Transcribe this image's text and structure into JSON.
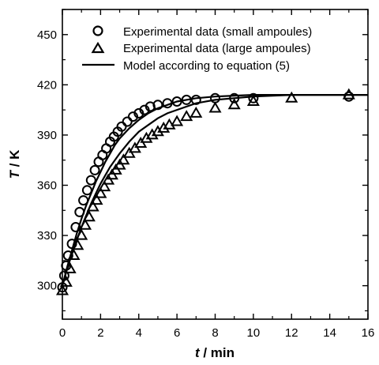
{
  "chart_data": {
    "type": "scatter",
    "xlabel": {
      "symbol": "t",
      "unit": " / min"
    },
    "ylabel": {
      "symbol": "T",
      "unit": " / K"
    },
    "xlim": [
      0,
      16
    ],
    "ylim": [
      280,
      465
    ],
    "x_ticks": [
      "0",
      "2",
      "4",
      "6",
      "8",
      "10",
      "12",
      "14",
      "16"
    ],
    "y_ticks": [
      "300",
      "330",
      "360",
      "390",
      "420",
      "450"
    ],
    "legend_position": "top-right",
    "series": [
      {
        "name": "Experimental data (small ampoules)",
        "marker": "circle",
        "x": [
          0,
          0.1,
          0.2,
          0.3,
          0.5,
          0.7,
          0.9,
          1.1,
          1.3,
          1.5,
          1.7,
          1.9,
          2.1,
          2.3,
          2.5,
          2.7,
          2.9,
          3.1,
          3.4,
          3.7,
          4.0,
          4.3,
          4.6,
          5.0,
          5.5,
          6.0,
          6.5,
          7.0,
          8.0,
          9.0,
          10.0,
          15.0
        ],
        "y": [
          299,
          306,
          312,
          318,
          325,
          335,
          344,
          351,
          357,
          363,
          369,
          374,
          378,
          382,
          386,
          389,
          392,
          395,
          398,
          401,
          403,
          405,
          407,
          408,
          409,
          410,
          411,
          411,
          412,
          412,
          412,
          413
        ]
      },
      {
        "name": "Experimental data (large ampoules)",
        "marker": "triangle",
        "x": [
          0.0,
          0.2,
          0.4,
          0.6,
          0.8,
          1.0,
          1.2,
          1.4,
          1.6,
          1.8,
          2.0,
          2.2,
          2.4,
          2.6,
          2.8,
          3.0,
          3.2,
          3.5,
          3.8,
          4.1,
          4.4,
          4.7,
          5.0,
          5.3,
          5.6,
          6.0,
          6.5,
          7.0,
          8.0,
          9.0,
          10.0,
          12.0,
          15.0
        ],
        "y": [
          297,
          302,
          310,
          318,
          324,
          330,
          336,
          341,
          347,
          351,
          355,
          359,
          363,
          366,
          369,
          372,
          375,
          379,
          382,
          385,
          388,
          390,
          392,
          394,
          396,
          398,
          401,
          403,
          406,
          408,
          410,
          412,
          414
        ]
      },
      {
        "name": "Model according to equation (5)",
        "marker": "line",
        "x": [
          0,
          0.25,
          0.5,
          0.75,
          1,
          1.25,
          1.5,
          1.75,
          2,
          2.25,
          2.5,
          2.75,
          3,
          3.5,
          4,
          4.5,
          5,
          5.5,
          6,
          7,
          8,
          9,
          10,
          11,
          12,
          13,
          14,
          15,
          16
        ],
        "y": [
          300,
          310,
          319,
          327,
          335,
          342,
          349,
          355,
          361,
          366,
          371,
          375,
          379,
          386,
          392,
          396,
          400,
          403,
          405,
          409,
          411,
          412,
          413,
          413.5,
          414,
          414,
          414,
          414,
          414
        ]
      },
      {
        "name": "",
        "marker": "line",
        "x": [
          0,
          0.25,
          0.5,
          0.75,
          1,
          1.25,
          1.5,
          1.75,
          2,
          2.25,
          2.5,
          2.75,
          3,
          3.5,
          4,
          4.5,
          5,
          5.5,
          6,
          7,
          8,
          9,
          10,
          11,
          12,
          13,
          14,
          15,
          16
        ],
        "y": [
          300,
          311,
          321,
          331,
          340,
          348,
          355,
          362,
          368,
          374,
          379,
          384,
          388,
          394,
          399,
          403,
          406,
          408,
          410,
          412,
          413,
          413.5,
          414,
          414,
          414,
          414,
          414,
          414,
          414
        ]
      }
    ]
  }
}
